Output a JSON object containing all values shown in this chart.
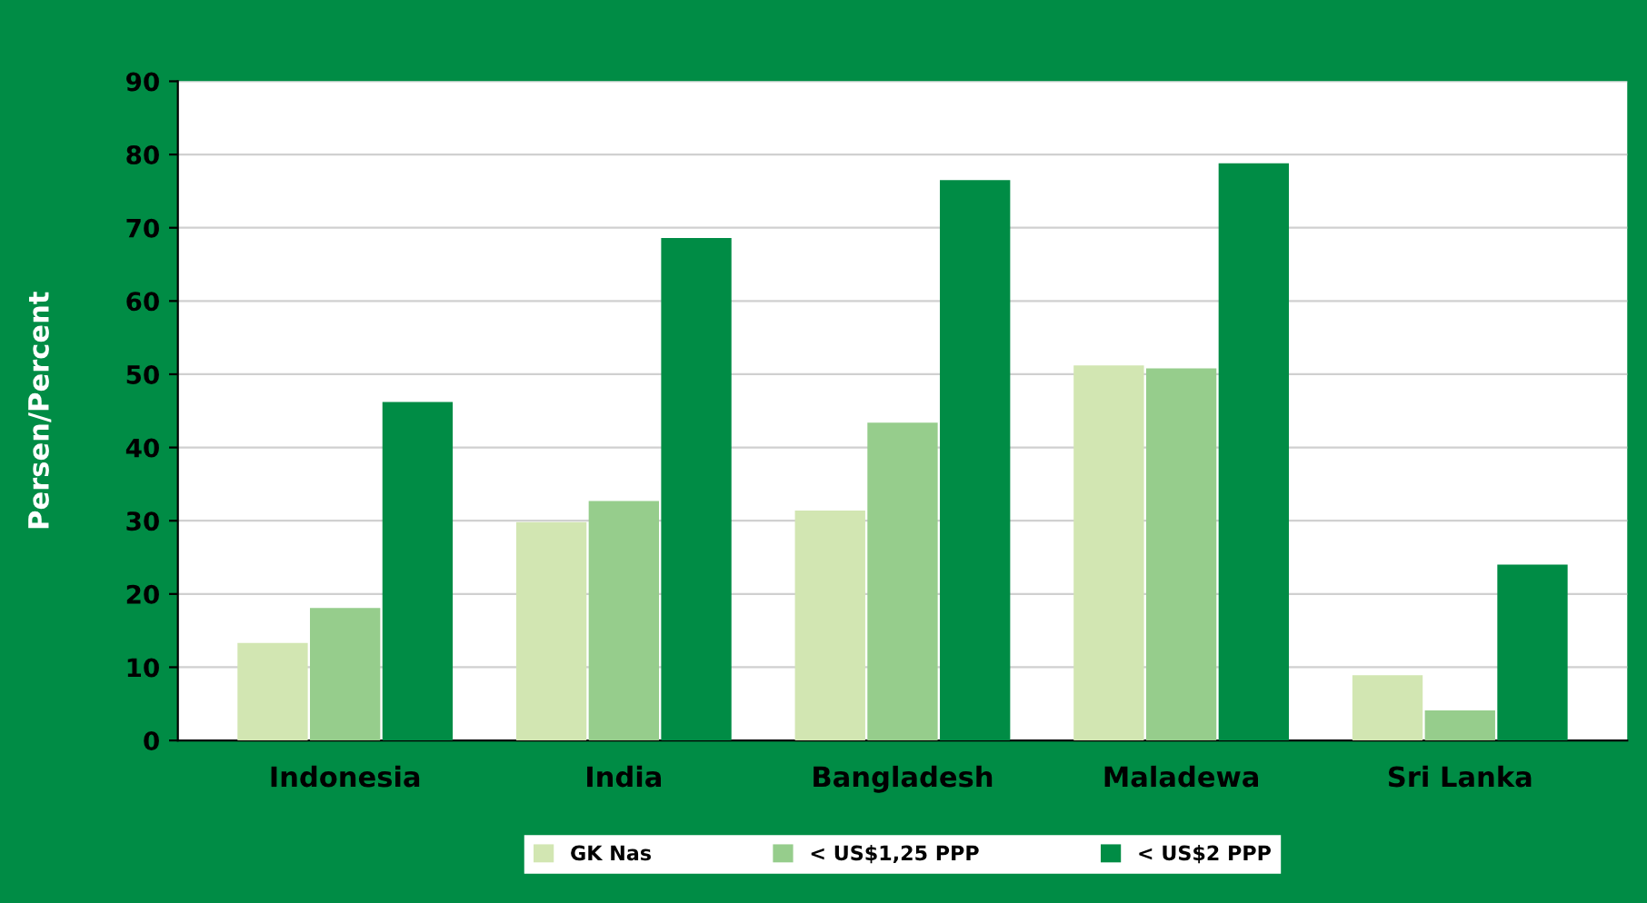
{
  "chart_data": {
    "type": "bar",
    "ylabel": "Persen/Percent",
    "categories": [
      "Indonesia",
      "India",
      "Bangladesh",
      "Maladewa",
      "Sri Lanka"
    ],
    "series": [
      {
        "name": "GK Nas",
        "color": "#d2e6b2",
        "values": [
          13.3,
          29.8,
          31.4,
          51.2,
          8.9
        ]
      },
      {
        "name": "< US$1,25 PPP",
        "color": "#96cd8c",
        "values": [
          18.1,
          32.7,
          43.4,
          50.8,
          4.1
        ]
      },
      {
        "name": "< US$2 PPP",
        "color": "#008c45",
        "values": [
          46.2,
          68.6,
          76.5,
          78.8,
          24.0
        ]
      }
    ],
    "ylim": [
      0,
      90
    ],
    "yticks": [
      0,
      10,
      20,
      30,
      40,
      50,
      60,
      70,
      80,
      90
    ],
    "grid": "y",
    "legend": "bottom"
  }
}
